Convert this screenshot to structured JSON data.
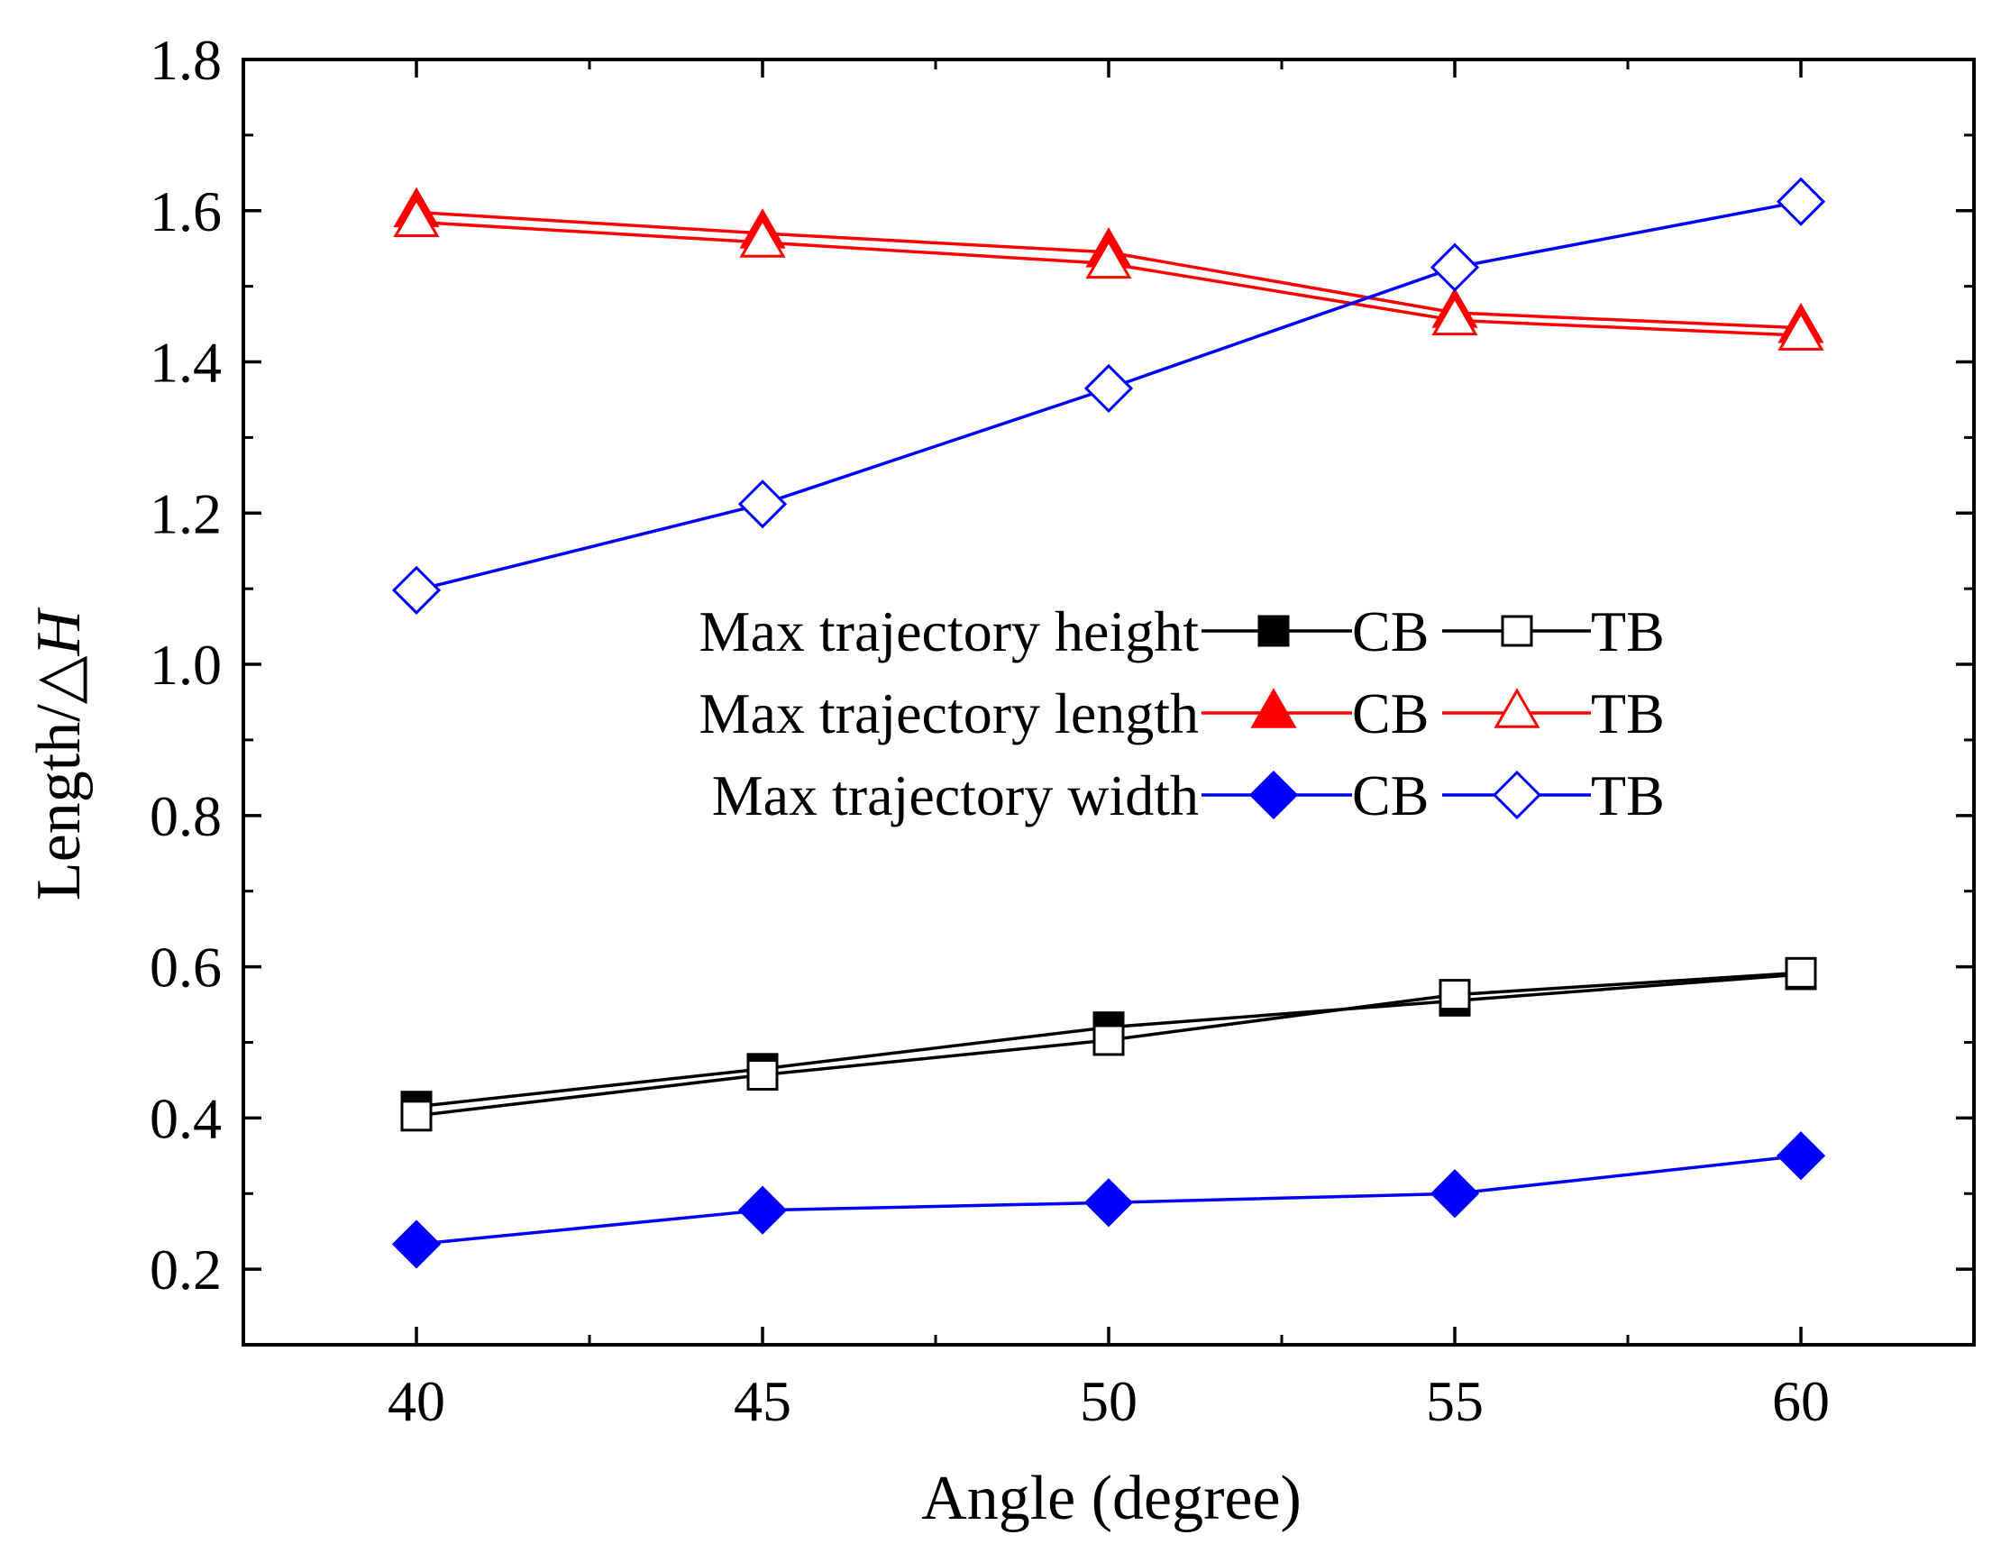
{
  "chart_data": {
    "type": "line",
    "title": "",
    "xlabel": "Angle (degree)",
    "ylabel_prefix": "Length/",
    "ylabel_symbol": "△",
    "ylabel_var": "H",
    "xlim": [
      37.5,
      62.5
    ],
    "ylim": [
      0.1,
      1.8
    ],
    "x_ticks": [
      40,
      45,
      50,
      55,
      60
    ],
    "x_tick_labels": [
      "40",
      "45",
      "50",
      "55",
      "60"
    ],
    "y_ticks": [
      0.2,
      0.4,
      0.6,
      0.8,
      1.0,
      1.2,
      1.4,
      1.6,
      1.8
    ],
    "y_tick_labels": [
      "0.2",
      "0.4",
      "0.6",
      "0.8",
      "1.0",
      "1.2",
      "1.4",
      "1.6",
      "1.8"
    ],
    "grid": false,
    "legend_position": "center-right",
    "x": [
      40,
      45,
      50,
      55,
      60
    ],
    "series": [
      {
        "name": "Max trajectory height CB",
        "group": "Max trajectory height",
        "variant": "CB",
        "color": "#000000",
        "marker": "square",
        "filled": true,
        "values": [
          0.415,
          0.465,
          0.52,
          0.555,
          0.59
        ]
      },
      {
        "name": "Max trajectory height TB",
        "group": "Max trajectory height",
        "variant": "TB",
        "color": "#000000",
        "marker": "square",
        "filled": false,
        "values": [
          0.403,
          0.457,
          0.503,
          0.563,
          0.592
        ]
      },
      {
        "name": "Max trajectory length CB",
        "group": "Max trajectory length",
        "variant": "CB",
        "color": "#ff0000",
        "marker": "triangle",
        "filled": true,
        "values": [
          1.598,
          1.57,
          1.545,
          1.465,
          1.445
        ]
      },
      {
        "name": "Max trajectory length TB",
        "group": "Max trajectory length",
        "variant": "TB",
        "color": "#ff0000",
        "marker": "triangle",
        "filled": false,
        "values": [
          1.585,
          1.558,
          1.53,
          1.455,
          1.435
        ]
      },
      {
        "name": "Max trajectory width CB",
        "group": "Max trajectory width",
        "variant": "CB",
        "color": "#0000ff",
        "marker": "diamond",
        "filled": true,
        "values": [
          0.233,
          0.278,
          0.288,
          0.3,
          0.35
        ]
      },
      {
        "name": "Max trajectory width TB",
        "group": "Max trajectory width",
        "variant": "TB",
        "color": "#0000ff",
        "marker": "diamond",
        "filled": false,
        "values": [
          1.098,
          1.212,
          1.365,
          1.525,
          1.612
        ]
      }
    ],
    "legend": [
      {
        "label": "Max trajectory height",
        "cb_label": "CB",
        "tb_label": "TB",
        "color": "#000000",
        "marker": "square"
      },
      {
        "label": "Max trajectory length",
        "cb_label": "CB",
        "tb_label": "TB",
        "color": "#ff0000",
        "marker": "triangle"
      },
      {
        "label": "Max trajectory width",
        "cb_label": "CB",
        "tb_label": "TB",
        "color": "#0000ff",
        "marker": "diamond"
      }
    ]
  }
}
